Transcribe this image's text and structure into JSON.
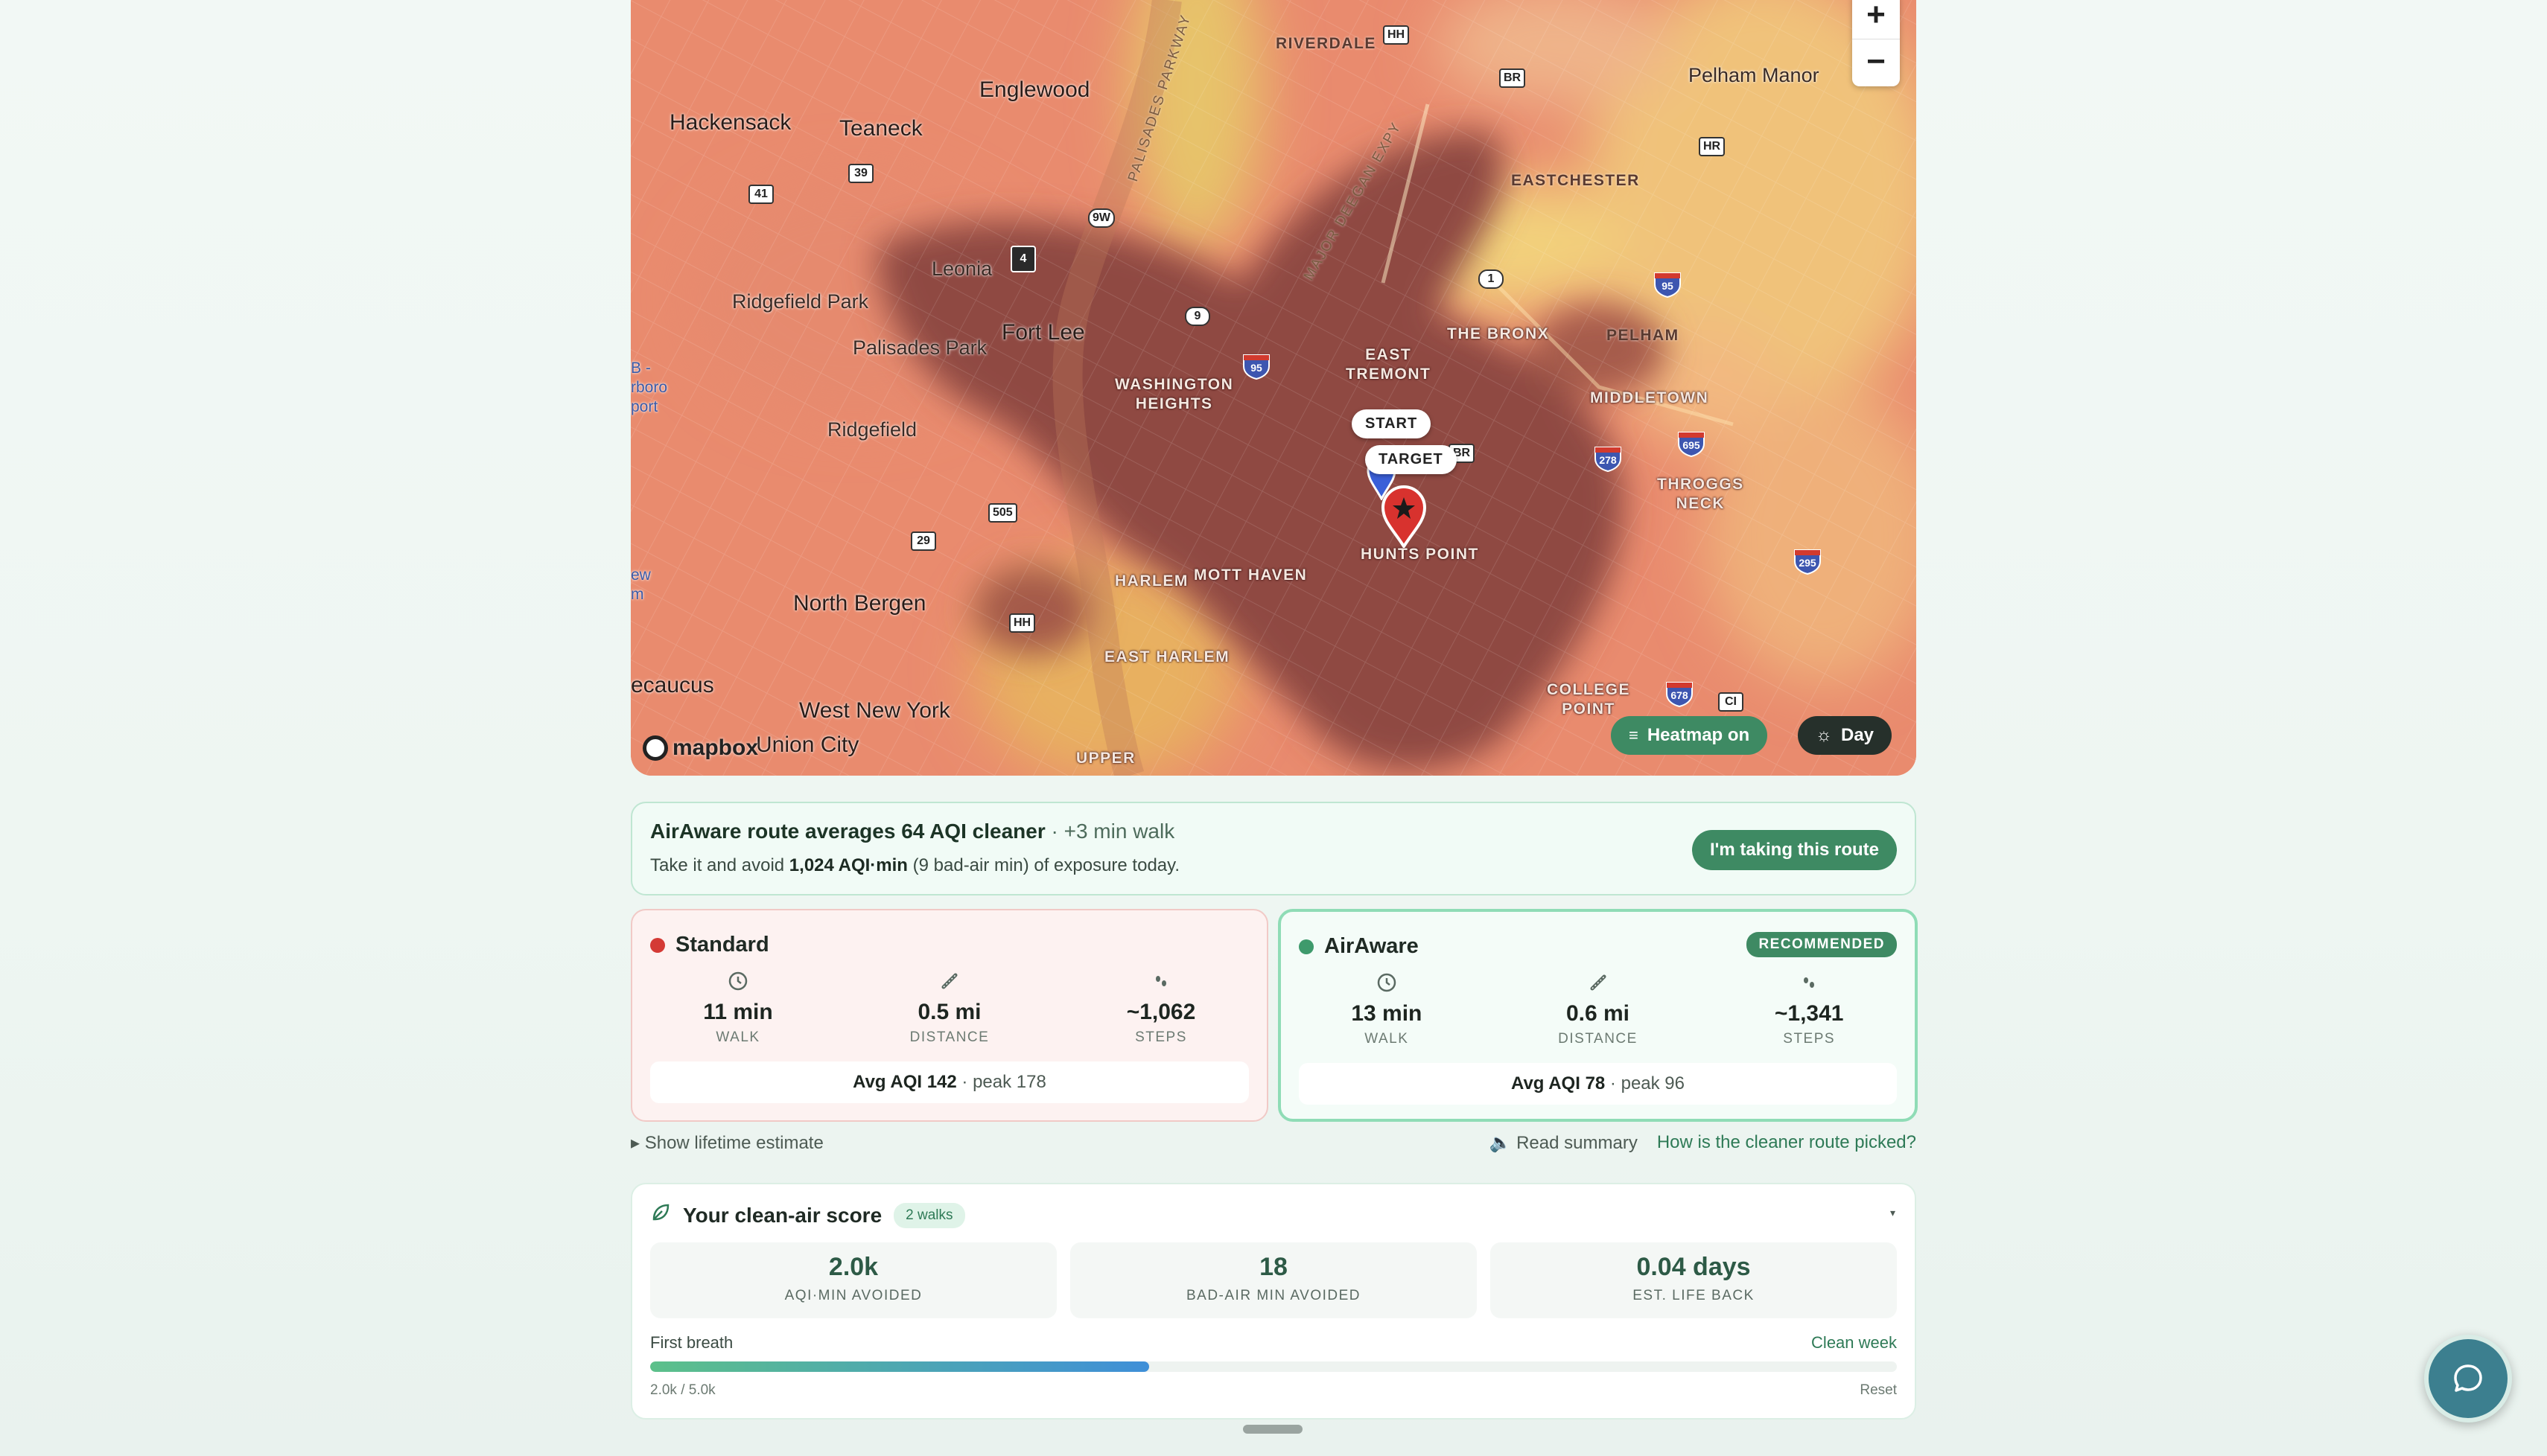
{
  "map": {
    "places": {
      "hackensack": "Hackensack",
      "teaneck": "Teaneck",
      "englewood": "Englewood",
      "leonia": "Leonia",
      "fort_lee": "Fort Lee",
      "ridgefield_park": "Ridgefield Park",
      "palisades_park": "Palisades Park",
      "ridgefield": "Ridgefield",
      "north_bergen": "North Bergen",
      "secaucus": "ecaucus",
      "west_new_york": "West New York",
      "union_city": "Union City",
      "riverdale": "RIVERDALE",
      "pelham_manor": "Pelham Manor",
      "eastchester": "EASTCHESTER",
      "the_bronx": "THE BRONX",
      "pelham": "PELHAM",
      "middletown": "MIDDLETOWN",
      "east_tremont": "EAST\nTREMONT",
      "washington_heights": "WASHINGTON\nHEIGHTS",
      "throggs_neck": "THROGGS\nNECK",
      "hunts_point": "HUNTS POINT",
      "harlem": "HARLEM",
      "mott_haven": "MOTT HAVEN",
      "east_harlem": "EAST HARLEM",
      "college_point": "COLLEGE\nPOINT",
      "upper": "UPPER",
      "palisades_pkwy": "PALISADES PARKWAY",
      "major_deegan": "MAJOR DEEGAN EXPY",
      "airport": "B -\nrboro\nport",
      "left_edge": "ew\nm"
    },
    "shields": {
      "hh_top": "HH",
      "br_top": "BR",
      "hr": "HR",
      "r39": "39",
      "r41": "41",
      "r9w": "9W",
      "r4": "4",
      "r9": "9",
      "r1": "1",
      "br_mid": "BR",
      "r505": "505",
      "r29": "29",
      "hh_low": "HH",
      "ci": "CI"
    },
    "interstates": {
      "i95a": "95",
      "i95b": "95",
      "i278": "278",
      "i695": "695",
      "i295": "295",
      "i678": "678"
    },
    "zoom_in": "+",
    "zoom_out": "−",
    "start_label": "START",
    "target_label": "TARGET",
    "heatmap_label": "Heatmap on",
    "day_label": "Day",
    "attribution": "mapbox",
    "icons": {
      "heatmap": "layers-icon",
      "day": "sun-icon",
      "target": "star-pin-icon"
    }
  },
  "banner": {
    "headline": "AirAware route averages 64 AQI cleaner",
    "headline_sub": " · +3 min walk",
    "line2_pre": "Take it and avoid ",
    "line2_bold": "1,024 AQI·min",
    "line2_post": " (9 bad-air min) of exposure today.",
    "cta": "I'm taking this route"
  },
  "routes": {
    "standard": {
      "name": "Standard",
      "color": "#d43a35",
      "walk": "11 min",
      "walk_label": "WALK",
      "distance": "0.5 mi",
      "distance_label": "DISTANCE",
      "steps": "~1,062",
      "steps_label": "STEPS",
      "avg": "Avg AQI 142",
      "peak": " · peak 178"
    },
    "airaware": {
      "name": "AirAware",
      "color": "#3e9a6c",
      "badge": "RECOMMENDED",
      "walk": "13 min",
      "walk_label": "WALK",
      "distance": "0.6 mi",
      "distance_label": "DISTANCE",
      "steps": "~1,341",
      "steps_label": "STEPS",
      "avg": "Avg AQI 78",
      "peak": " · peak 96"
    }
  },
  "links": {
    "lifetime": "▸ Show lifetime estimate",
    "read_summary": "🔈 Read summary",
    "how": "How is the cleaner route picked?"
  },
  "score": {
    "title": "Your clean-air score",
    "walks": "2 walks",
    "caret": "▾",
    "tiles": [
      {
        "value": "2.0k",
        "label": "AQI·MIN AVOIDED"
      },
      {
        "value": "18",
        "label": "BAD-AIR MIN AVOIDED"
      },
      {
        "value": "0.04 days",
        "label": "EST. LIFE BACK"
      }
    ],
    "milestone_left": "First breath",
    "milestone_right": "Clean week",
    "progress_fraction": 0.4,
    "progress_text": "2.0k / 5.0k",
    "reset": "Reset"
  }
}
